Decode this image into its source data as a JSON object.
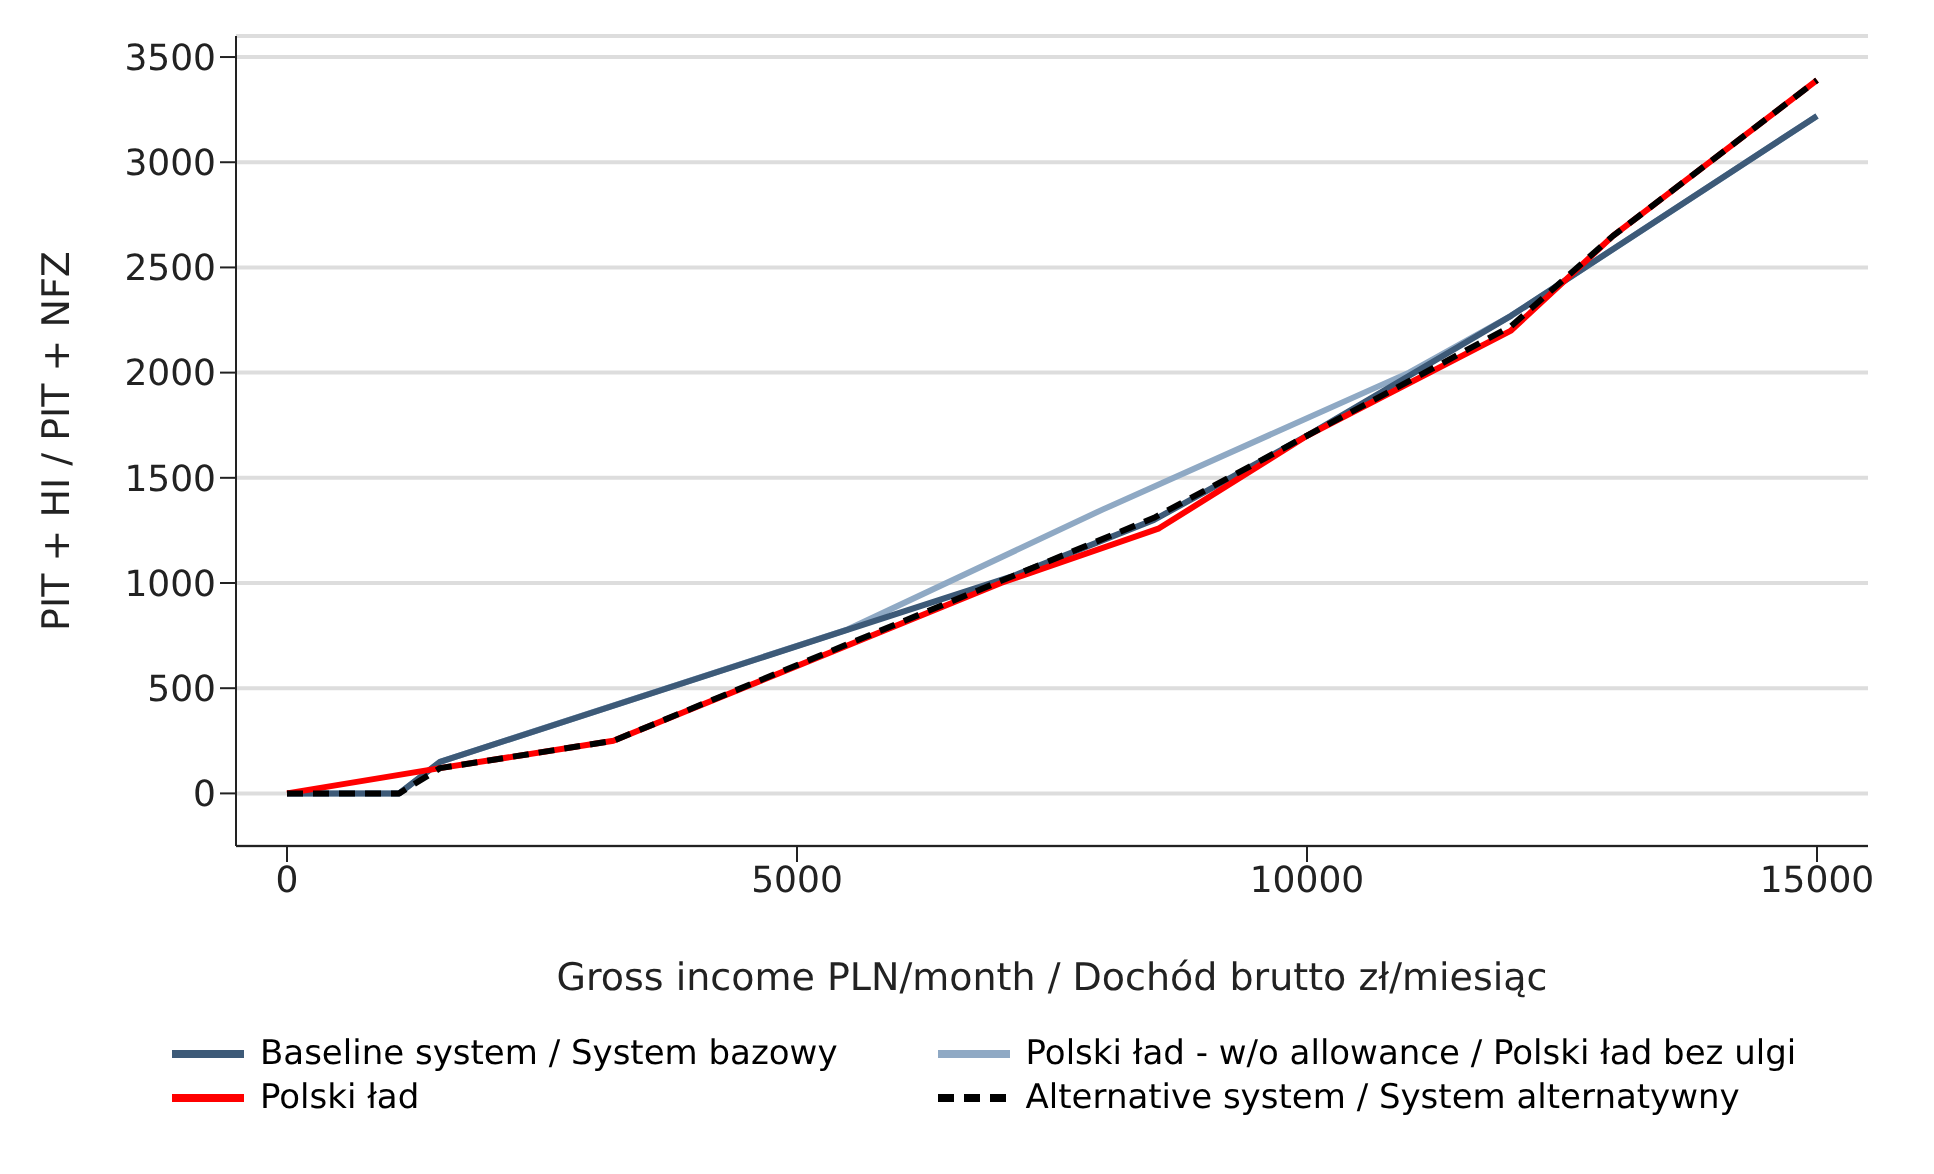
{
  "chart_data": {
    "type": "line",
    "xlabel": "Gross income PLN/month / Dochód brutto zł/miesiąc",
    "ylabel": "PIT + HI / PIT + NFZ",
    "xlim": [
      -500,
      15500
    ],
    "xticks": [
      0,
      5000,
      10000,
      15000
    ],
    "ylim": [
      -250,
      3600
    ],
    "yticks": [
      0,
      500,
      1000,
      1500,
      2000,
      2500,
      3000,
      3500
    ],
    "grid": "y",
    "legend": "bottom",
    "marker": "none",
    "series": [
      {
        "name": "Polski ład - w/o allowance / Polski ład bez ulgi",
        "color": "#8fa9c4",
        "x": [
          0,
          1100,
          1500,
          5500,
          8000,
          11000,
          12000,
          15000
        ],
        "values": [
          0,
          0,
          150,
          780,
          1350,
          2000,
          2270,
          3220
        ]
      },
      {
        "name": "Baseline system / System bazowy",
        "color": "#3d5a78",
        "x": [
          0,
          1100,
          1500,
          7100,
          8500,
          10000,
          12000,
          15000
        ],
        "values": [
          0,
          0,
          150,
          1030,
          1300,
          1700,
          2270,
          3220
        ]
      },
      {
        "name": "Polski ład",
        "color": "#ff0000",
        "x": [
          0,
          1500,
          3200,
          7000,
          8550,
          10000,
          12000,
          13000,
          15000
        ],
        "values": [
          0,
          120,
          250,
          1000,
          1260,
          1700,
          2200,
          2650,
          3390
        ]
      },
      {
        "name": "Alternative system / System alternatywny",
        "color": "#000000",
        "line_style": "dashed",
        "x": [
          0,
          1100,
          1500,
          3200,
          8500,
          10000,
          12000,
          13000,
          15000
        ],
        "values": [
          0,
          0,
          120,
          250,
          1310,
          1700,
          2220,
          2650,
          3390
        ]
      }
    ]
  }
}
